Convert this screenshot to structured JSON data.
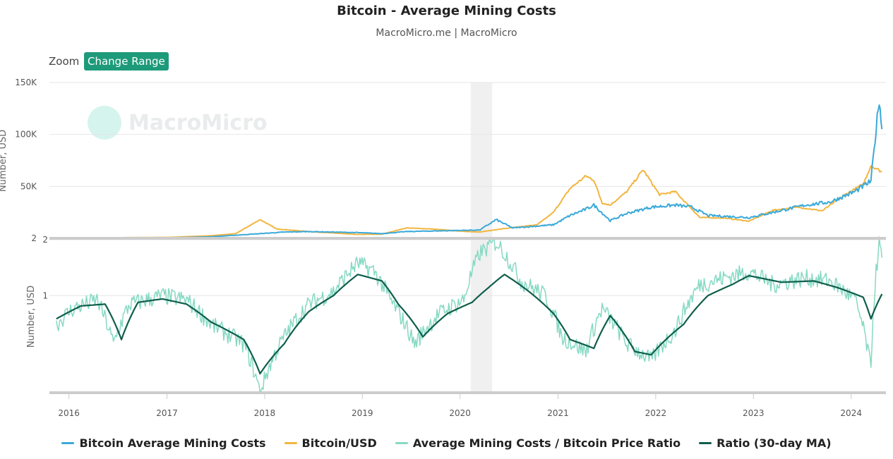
{
  "header": {
    "title": "Bitcoin - Average Mining Costs",
    "subtitle": "MacroMicro.me | MacroMicro"
  },
  "toolbar": {
    "zoom_label": "Zoom",
    "range_button_label": "Change Range"
  },
  "watermark": {
    "text": "MacroMicro"
  },
  "colors": {
    "mining_cost": "#3aa9d9",
    "btc_usd": "#f2b53f",
    "ratio": "#86d9c3",
    "ratio_ma": "#0f5e4c",
    "recession_band": "#f0f0f0",
    "range_button": "#1d9a7a"
  },
  "chart_data": [
    {
      "type": "line",
      "panel": "top",
      "ylabel": "Number, USD",
      "ylim": [
        2,
        150000
      ],
      "yticks": [
        {
          "value": 2,
          "label": "2"
        },
        {
          "value": 50000,
          "label": "50K"
        },
        {
          "value": 100000,
          "label": "100K"
        },
        {
          "value": 150000,
          "label": "150K"
        }
      ],
      "grid": true,
      "series": [
        {
          "name": "Bitcoin Average Mining Costs",
          "color": "#3aa9d9",
          "points": [
            [
              "2015-11",
              300
            ],
            [
              "2016-06",
              400
            ],
            [
              "2017-01",
              500
            ],
            [
              "2017-06",
              1500
            ],
            [
              "2017-12",
              4500
            ],
            [
              "2018-03",
              6000
            ],
            [
              "2018-06",
              6500
            ],
            [
              "2018-12",
              5500
            ],
            [
              "2019-03",
              4500
            ],
            [
              "2019-06",
              6500
            ],
            [
              "2019-12",
              7500
            ],
            [
              "2020-03",
              8000
            ],
            [
              "2020-05",
              18000
            ],
            [
              "2020-07",
              10000
            ],
            [
              "2020-12",
              13000
            ],
            [
              "2021-02",
              22000
            ],
            [
              "2021-04",
              28000
            ],
            [
              "2021-05",
              32000
            ],
            [
              "2021-07",
              17000
            ],
            [
              "2021-09",
              24000
            ],
            [
              "2021-12",
              30000
            ],
            [
              "2022-03",
              32000
            ],
            [
              "2022-05",
              30000
            ],
            [
              "2022-07",
              22000
            ],
            [
              "2022-12",
              20000
            ],
            [
              "2023-03",
              25000
            ],
            [
              "2023-07",
              32000
            ],
            [
              "2023-10",
              35000
            ],
            [
              "2024-01",
              45000
            ],
            [
              "2024-03",
              55000
            ],
            [
              "2024-04",
              135000
            ],
            [
              "2024-04-25",
              105000
            ]
          ]
        },
        {
          "name": "Bitcoin/USD",
          "color": "#f2b53f",
          "points": [
            [
              "2015-11",
              350
            ],
            [
              "2016-06",
              650
            ],
            [
              "2017-01",
              1000
            ],
            [
              "2017-06",
              2500
            ],
            [
              "2017-09",
              4500
            ],
            [
              "2017-12",
              18000
            ],
            [
              "2018-02",
              9000
            ],
            [
              "2018-06",
              6500
            ],
            [
              "2018-12",
              3700
            ],
            [
              "2019-03",
              4000
            ],
            [
              "2019-06",
              10000
            ],
            [
              "2019-09",
              9000
            ],
            [
              "2019-12",
              7200
            ],
            [
              "2020-03",
              6000
            ],
            [
              "2020-06",
              9500
            ],
            [
              "2020-10",
              13000
            ],
            [
              "2020-12",
              25000
            ],
            [
              "2021-02",
              48000
            ],
            [
              "2021-04",
              60000
            ],
            [
              "2021-05",
              56000
            ],
            [
              "2021-06",
              34000
            ],
            [
              "2021-07",
              32000
            ],
            [
              "2021-09",
              45000
            ],
            [
              "2021-11",
              66000
            ],
            [
              "2022-01",
              42000
            ],
            [
              "2022-03",
              45000
            ],
            [
              "2022-06",
              20000
            ],
            [
              "2022-09",
              19500
            ],
            [
              "2022-12",
              16500
            ],
            [
              "2023-03",
              27000
            ],
            [
              "2023-06",
              30000
            ],
            [
              "2023-09",
              26500
            ],
            [
              "2023-12",
              43000
            ],
            [
              "2024-02",
              52000
            ],
            [
              "2024-03",
              70000
            ],
            [
              "2024-04-25",
              64000
            ]
          ]
        }
      ]
    },
    {
      "type": "line",
      "panel": "bottom",
      "ylabel": "Number, USD",
      "ylim": [
        0.3,
        2
      ],
      "yticks": [
        {
          "value": 1,
          "label": "1"
        },
        {
          "value": 2,
          "label": "2"
        }
      ],
      "grid": true,
      "series": [
        {
          "name": "Average Mining Costs / Bitcoin Price Ratio",
          "color": "#86d9c3",
          "points": [
            [
              "2015-11",
              0.7
            ],
            [
              "2016-01",
              0.85
            ],
            [
              "2016-04",
              0.95
            ],
            [
              "2016-06",
              0.55
            ],
            [
              "2016-08",
              0.9
            ],
            [
              "2016-12",
              1.0
            ],
            [
              "2017-03",
              0.95
            ],
            [
              "2017-06",
              0.7
            ],
            [
              "2017-10",
              0.55
            ],
            [
              "2017-12",
              0.3
            ],
            [
              "2018-03",
              0.6
            ],
            [
              "2018-06",
              0.9
            ],
            [
              "2018-09",
              1.05
            ],
            [
              "2018-12",
              1.5
            ],
            [
              "2019-02",
              1.35
            ],
            [
              "2019-04",
              0.95
            ],
            [
              "2019-07",
              0.55
            ],
            [
              "2019-10",
              0.8
            ],
            [
              "2020-01",
              0.95
            ],
            [
              "2020-03",
              1.7
            ],
            [
              "2020-05",
              1.95
            ],
            [
              "2020-08",
              1.2
            ],
            [
              "2020-11",
              1.0
            ],
            [
              "2021-01",
              0.6
            ],
            [
              "2021-04",
              0.5
            ],
            [
              "2021-06",
              0.85
            ],
            [
              "2021-09",
              0.55
            ],
            [
              "2021-12",
              0.45
            ],
            [
              "2022-03",
              0.65
            ],
            [
              "2022-06",
              1.15
            ],
            [
              "2022-09",
              1.25
            ],
            [
              "2022-12",
              1.35
            ],
            [
              "2023-03",
              1.15
            ],
            [
              "2023-07",
              1.25
            ],
            [
              "2023-10",
              1.2
            ],
            [
              "2024-01",
              0.95
            ],
            [
              "2024-03",
              0.4
            ],
            [
              "2024-04",
              1.9
            ],
            [
              "2024-04-25",
              1.6
            ]
          ]
        },
        {
          "name": "Ratio (30-day MA)",
          "color": "#0f5e4c",
          "points": [
            [
              "2015-11",
              0.75
            ],
            [
              "2016-02",
              0.88
            ],
            [
              "2016-05",
              0.9
            ],
            [
              "2016-07",
              0.58
            ],
            [
              "2016-09",
              0.92
            ],
            [
              "2016-12",
              0.96
            ],
            [
              "2017-03",
              0.9
            ],
            [
              "2017-06",
              0.72
            ],
            [
              "2017-10",
              0.58
            ],
            [
              "2017-12",
              0.38
            ],
            [
              "2018-03",
              0.55
            ],
            [
              "2018-06",
              0.82
            ],
            [
              "2018-09",
              1.0
            ],
            [
              "2018-12",
              1.3
            ],
            [
              "2019-03",
              1.2
            ],
            [
              "2019-05",
              0.9
            ],
            [
              "2019-08",
              0.6
            ],
            [
              "2019-11",
              0.8
            ],
            [
              "2020-02",
              0.92
            ],
            [
              "2020-04",
              1.1
            ],
            [
              "2020-06",
              1.3
            ],
            [
              "2020-09",
              1.05
            ],
            [
              "2020-12",
              0.8
            ],
            [
              "2021-02",
              0.58
            ],
            [
              "2021-05",
              0.52
            ],
            [
              "2021-07",
              0.78
            ],
            [
              "2021-10",
              0.5
            ],
            [
              "2021-12",
              0.48
            ],
            [
              "2022-04",
              0.7
            ],
            [
              "2022-07",
              1.0
            ],
            [
              "2022-10",
              1.15
            ],
            [
              "2022-12",
              1.28
            ],
            [
              "2023-04",
              1.18
            ],
            [
              "2023-08",
              1.2
            ],
            [
              "2023-11",
              1.1
            ],
            [
              "2024-02",
              0.98
            ],
            [
              "2024-03",
              0.75
            ],
            [
              "2024-04-25",
              1.02
            ]
          ]
        }
      ]
    }
  ],
  "x_axis": {
    "min": "2015-10-20",
    "max": "2024-05-10",
    "ticks": [
      {
        "date": "2016-01-01",
        "label": "2016"
      },
      {
        "date": "2017-01-01",
        "label": "2017"
      },
      {
        "date": "2018-01-01",
        "label": "2018"
      },
      {
        "date": "2019-01-01",
        "label": "2019"
      },
      {
        "date": "2020-01-01",
        "label": "2020"
      },
      {
        "date": "2021-01-01",
        "label": "2021"
      },
      {
        "date": "2022-01-01",
        "label": "2022"
      },
      {
        "date": "2023-01-01",
        "label": "2023"
      },
      {
        "date": "2024-01-01",
        "label": "2024"
      }
    ]
  },
  "recession_band": {
    "start": "2020-02-10",
    "end": "2020-04-30"
  },
  "legend": {
    "placement": "bottom",
    "items": [
      {
        "label": "Bitcoin Average Mining Costs",
        "color": "#3aa9d9"
      },
      {
        "label": "Bitcoin/USD",
        "color": "#f2b53f"
      },
      {
        "label": "Average Mining Costs / Bitcoin Price Ratio",
        "color": "#86d9c3"
      },
      {
        "label": "Ratio (30-day MA)",
        "color": "#0f5e4c"
      }
    ]
  }
}
